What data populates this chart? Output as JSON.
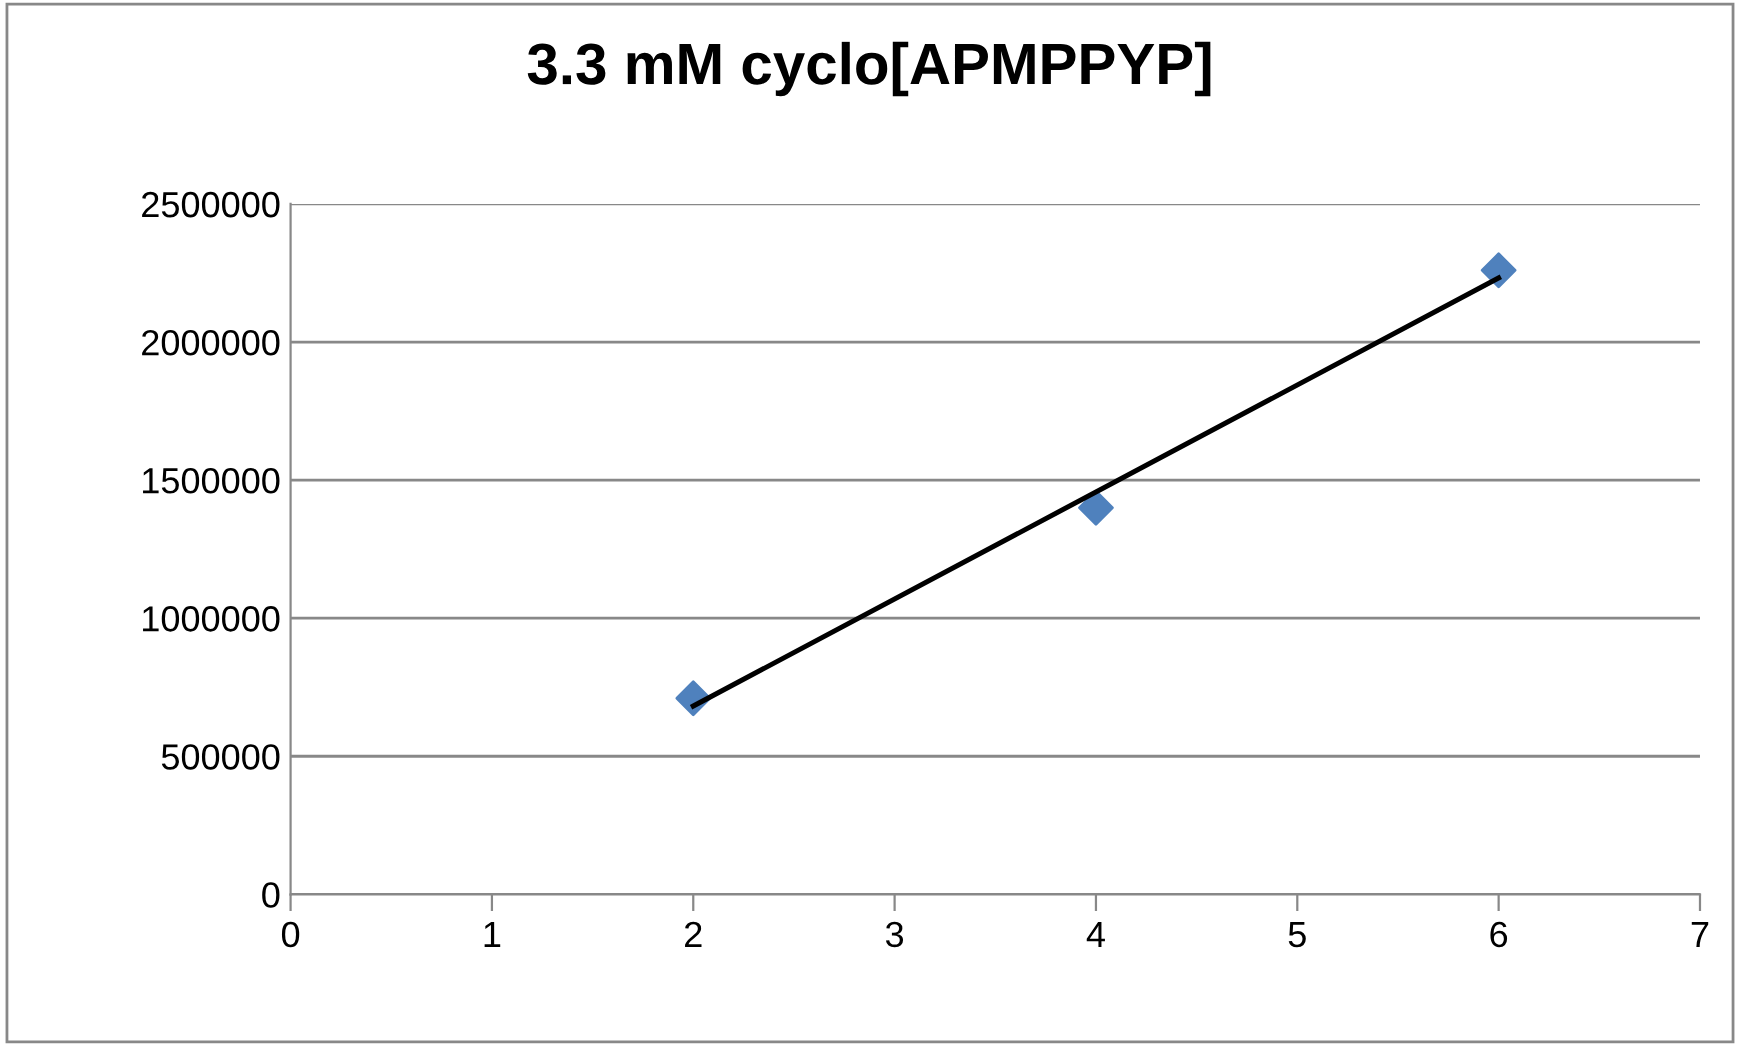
{
  "chart_data": {
    "type": "scatter",
    "title": "3.3 mM cyclo[APMPPYP]",
    "series": [
      {
        "x": [
          2,
          4,
          6
        ],
        "values": [
          710000,
          1400000,
          2260000
        ],
        "color": "#4f81bd",
        "marker": "diamond"
      },
      {
        "type": "line",
        "x": [
          2,
          6
        ],
        "values": [
          682000,
          2232000
        ],
        "color": "#000000",
        "marker": "none"
      }
    ],
    "xlim": [
      0,
      7
    ],
    "xticks": [
      0,
      1,
      2,
      3,
      4,
      5,
      6,
      7
    ],
    "ylim": [
      0,
      2500000
    ],
    "yticks": [
      0,
      500000,
      1000000,
      1500000,
      2000000,
      2500000
    ],
    "grid": "y",
    "legend": false
  }
}
